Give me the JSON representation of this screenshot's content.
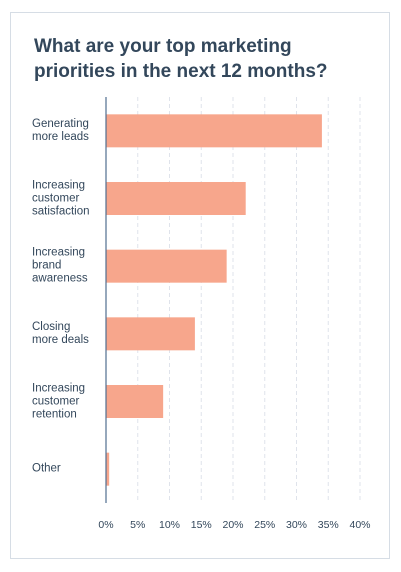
{
  "chart_data": {
    "type": "bar",
    "orientation": "horizontal",
    "title": "What are your top marketing priorities in the next 12 months?",
    "categories": [
      "Generating\nmore leads",
      "Increasing\ncustomer\nsatisfaction",
      "Increasing\nbrand\nawareness",
      "Closing\nmore deals",
      "Increasing\ncustomer\nretention",
      "Other"
    ],
    "values": [
      34,
      22,
      19,
      14,
      9,
      0.5
    ],
    "color": "#f7a68c",
    "xlim": [
      0,
      40
    ],
    "xticks": [
      {
        "value": 0,
        "label": "0%"
      },
      {
        "value": 5,
        "label": "5%"
      },
      {
        "value": 10,
        "label": "10%"
      },
      {
        "value": 15,
        "label": "15%"
      },
      {
        "value": 20,
        "label": "20%"
      },
      {
        "value": 25,
        "label": "25%"
      },
      {
        "value": 30,
        "label": "30%"
      },
      {
        "value": 35,
        "label": "35%"
      },
      {
        "value": 40,
        "label": "40%"
      }
    ],
    "grid": true
  }
}
